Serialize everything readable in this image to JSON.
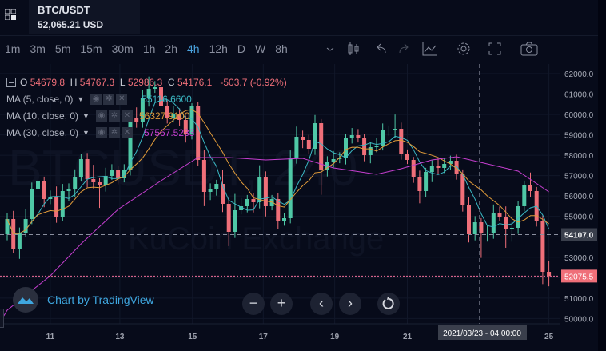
{
  "header": {
    "symbol": "BTC/USDT",
    "price": "52,065.21 USD"
  },
  "toolbar": {
    "timeframes": [
      "1m",
      "3m",
      "5m",
      "15m",
      "30m",
      "1h",
      "2h",
      "4h",
      "12h",
      "D",
      "W",
      "8h"
    ],
    "active": "4h",
    "icons": [
      "chevron-down-icon",
      "candles-icon",
      "undo-icon",
      "redo-icon",
      "indicators-icon",
      "settings-icon",
      "fullscreen-icon",
      "camera-icon"
    ]
  },
  "legend": {
    "o_label": "O",
    "o": "54679.8",
    "h_label": "H",
    "h": "54767.3",
    "l_label": "L",
    "l": "52986.3",
    "c_label": "C",
    "c": "54176.1",
    "change": "-503.7 (-0.92%)",
    "ma": [
      {
        "label": "MA (5, close, 0)",
        "value": "55116.6600",
        "color": "#3bb8c4"
      },
      {
        "label": "MA (10, close, 0)",
        "value": "56327.9100",
        "color": "#e09b3a"
      },
      {
        "label": "MA (30, close, 0)",
        "value": "57567.5233",
        "color": "#c63fd0"
      }
    ]
  },
  "watermark": {
    "symbol": "BTCUSDT, 240",
    "exchange": "KuCoin Exchange"
  },
  "branding": {
    "text": "Chart by TradingView"
  },
  "nav": {
    "zoom_out": "−",
    "zoom_in": "+",
    "left": "‹",
    "right": "›"
  },
  "chart_data": {
    "type": "candlestick",
    "up_color": "#4fc8a6",
    "down_color": "#ef6f79",
    "ylim": [
      49500,
      62500
    ],
    "y_ticks": [
      62000,
      61000,
      60000,
      59000,
      58000,
      57000,
      56000,
      55000,
      54000,
      53000,
      52000,
      51000,
      50000
    ],
    "y_tick_labels": [
      "62000.0",
      "61000.0",
      "60000.0",
      "59000.0",
      "58000.0",
      "57000.0",
      "56000.0",
      "55000.0",
      "54107.0",
      "53000.0",
      "52075.5",
      "51000.0",
      "50000.0"
    ],
    "x_labels": [
      {
        "label": "11",
        "index": 7
      },
      {
        "label": "13",
        "index": 18.3
      },
      {
        "label": "15",
        "index": 30.1
      },
      {
        "label": "17",
        "index": 41.6
      },
      {
        "label": "19",
        "index": 53.2
      },
      {
        "label": "21",
        "index": 65
      },
      {
        "label": "25",
        "index": 88
      }
    ],
    "first_open": 54127,
    "close": [
      54871,
      53422,
      54205,
      54871,
      56360,
      56751,
      55850,
      55968,
      54989,
      56242,
      56320,
      56908,
      57809,
      56830,
      56673,
      56516,
      56986,
      57260,
      56869,
      57260,
      59846,
      59650,
      60786,
      61256,
      61334,
      60433,
      59806,
      60002,
      59728,
      59023,
      60394,
      57770,
      56203,
      56320,
      56595,
      55615,
      54244,
      55302,
      55498,
      55850,
      55694,
      56908,
      55498,
      55850,
      54793,
      54910,
      57887,
      58906,
      58749,
      58318,
      59571,
      57260,
      57652,
      57809,
      57848,
      58827,
      58984,
      58827,
      58005,
      58396,
      58436,
      59258,
      59258,
      59297,
      58083,
      57770,
      56947,
      56242,
      57182,
      57495,
      57378,
      57574,
      57730,
      57104,
      55537,
      54127,
      54714,
      54166,
      54205,
      55184,
      54989,
      54362,
      54440,
      55498,
      56555,
      56242,
      54754,
      52286,
      52075
    ],
    "upper_wick": [
      300,
      400,
      250,
      500,
      300,
      600,
      200,
      300,
      500,
      350,
      300,
      400,
      250,
      300,
      700,
      200,
      400,
      300,
      200,
      300,
      250,
      500,
      400,
      600,
      300,
      200,
      250,
      400,
      300,
      200,
      150,
      200,
      500,
      300,
      200,
      700,
      300,
      800,
      400,
      200,
      300,
      600,
      300,
      200,
      300,
      250,
      350,
      500,
      300,
      250,
      400,
      200,
      300,
      400,
      300,
      200,
      350,
      300,
      200,
      250,
      400,
      300,
      200,
      700,
      300,
      200,
      150,
      300,
      200,
      250,
      400,
      300,
      250,
      300,
      200,
      400,
      300,
      200,
      350,
      400,
      300,
      500,
      300,
      250,
      200,
      600,
      200,
      300,
      550
    ],
    "lower_wick": [
      300,
      200,
      500,
      200,
      250,
      300,
      400,
      250,
      300,
      200,
      500,
      350,
      200,
      400,
      300,
      1100,
      300,
      200,
      300,
      200,
      250,
      300,
      300,
      400,
      200,
      300,
      250,
      200,
      300,
      400,
      250,
      300,
      700,
      400,
      300,
      400,
      700,
      300,
      200,
      300,
      500,
      300,
      500,
      200,
      400,
      250,
      250,
      300,
      400,
      250,
      300,
      1200,
      300,
      250,
      200,
      300,
      250,
      200,
      300,
      400,
      250,
      200,
      300,
      400,
      300,
      200,
      300,
      600,
      300,
      500,
      300,
      250,
      300,
      300,
      300,
      400,
      300,
      1200,
      400,
      300,
      200,
      900,
      600,
      300,
      250,
      300,
      250,
      600,
      500
    ],
    "ma30_keyframes": [
      [
        0,
        50406
      ],
      [
        7,
        52090
      ],
      [
        12,
        53657
      ],
      [
        18,
        55341
      ],
      [
        25,
        56751
      ],
      [
        31,
        57887
      ],
      [
        36,
        57887
      ],
      [
        42,
        57770
      ],
      [
        48,
        57848
      ],
      [
        53,
        57378
      ],
      [
        60,
        57064
      ],
      [
        64,
        57340
      ],
      [
        69,
        57770
      ],
      [
        73,
        57926
      ],
      [
        78,
        57574
      ],
      [
        83,
        57222
      ],
      [
        88,
        56203
      ]
    ],
    "crosshair": {
      "price": "54107.0",
      "time": "2021/03/23 - 04:00:00",
      "index": 77
    },
    "last_price": {
      "value": 52075.5,
      "label": "52075.5"
    }
  }
}
